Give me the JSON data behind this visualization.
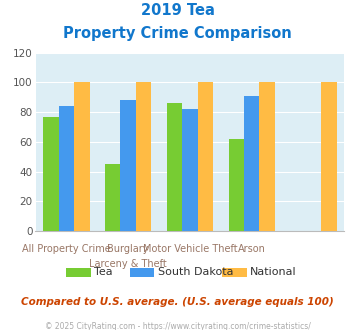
{
  "title_line1": "2019 Tea",
  "title_line2": "Property Crime Comparison",
  "series": [
    {
      "name": "Tea",
      "values": [
        77,
        45,
        86,
        62,
        null
      ],
      "color": "#77cc33"
    },
    {
      "name": "South Dakota",
      "values": [
        84,
        88,
        82,
        91,
        null
      ],
      "color": "#4499ee"
    },
    {
      "name": "National",
      "values": [
        100,
        100,
        100,
        100,
        100
      ],
      "color": "#ffbb44"
    }
  ],
  "n_groups": 5,
  "group_centers": [
    0,
    1,
    2,
    3,
    4
  ],
  "xlabels_top": [
    "All Property Crime",
    "Burglary",
    "Motor Vehicle Theft",
    "Arson",
    ""
  ],
  "xlabels_bot": [
    "",
    "Larceny & Theft",
    "",
    "",
    ""
  ],
  "ylim": [
    0,
    120
  ],
  "yticks": [
    0,
    20,
    40,
    60,
    80,
    100,
    120
  ],
  "title_color": "#1177cc",
  "axis_bg_color": "#ddeef5",
  "xlabel_color": "#997766",
  "grid_color": "#ffffff",
  "note_text": "Compared to U.S. average. (U.S. average equals 100)",
  "note_color": "#cc4400",
  "footer_text": "© 2025 CityRating.com - https://www.cityrating.com/crime-statistics/",
  "footer_color": "#aaaaaa",
  "legend_text_color": "#333333",
  "bar_width": 0.25
}
